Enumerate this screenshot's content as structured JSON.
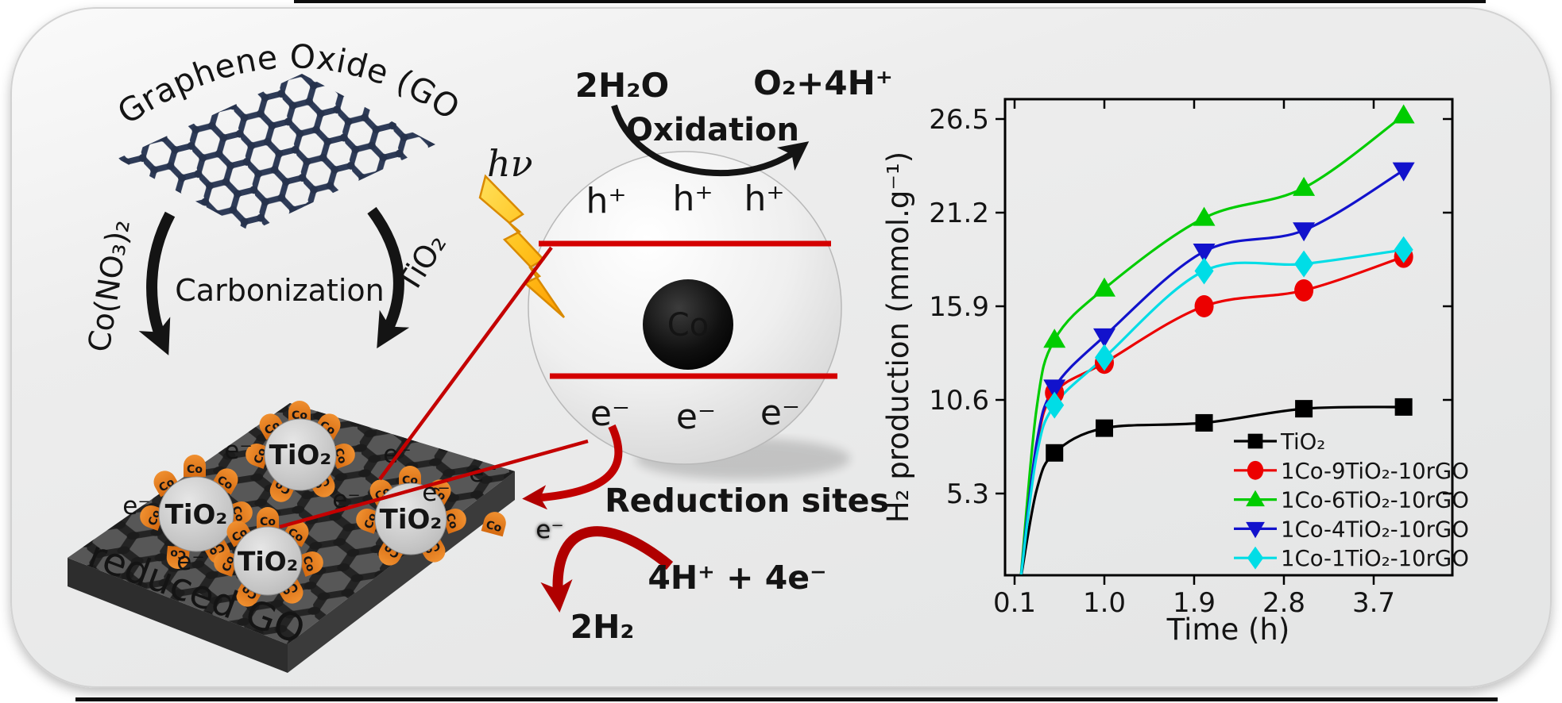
{
  "figure": {
    "labels": {
      "graphene_oxide": "Graphene Oxide (GO)",
      "co_nitrate": "Co(NO₃)₂",
      "carbonization": "Carbonization",
      "tio2_reagent": "TiO₂",
      "light": "hν",
      "water": "2H₂O",
      "oxidation": "Oxidation",
      "oxygen_product": "O₂+4H⁺",
      "hole": "h⁺",
      "electron": "e⁻",
      "cobalt": "Co",
      "reduction_sites": "Reduction sites",
      "proton_feed": "4H⁺ + 4e⁻",
      "hydrogen_product": "2H₂",
      "reduced_go": "reduced GO",
      "tio2_particle": "TiO₂"
    },
    "colors": {
      "card_bg": "#ebecec",
      "lattice_navy": "#2e3b57",
      "band_red": "#d40000",
      "dark_red": "#b00000",
      "reduction_red": "#c40000",
      "bolt_yellow": "#ffd34d",
      "bolt_orange": "#ff9d00",
      "cobalt_orange": "#e8821f",
      "slab_gray": "#575757",
      "tio2_gray": "#c9c9c9"
    }
  },
  "chart_data": {
    "type": "line",
    "title": "",
    "xlabel": "Time (h)",
    "ylabel": "H₂ production (mmol.g⁻¹)",
    "x": [
      0.5,
      1.0,
      2.0,
      3.0,
      4.0
    ],
    "xticks": [
      0.1,
      1.0,
      1.9,
      2.8,
      3.7
    ],
    "yticks": [
      5.3,
      10.6,
      15.9,
      21.2,
      26.5
    ],
    "xlim": [
      0.1,
      4.55
    ],
    "ylim": [
      0.7,
      27.6
    ],
    "grid": false,
    "legend_position": "inside-bottom-right",
    "series": [
      {
        "name": "TiO₂",
        "marker": "square",
        "color": "#000000",
        "values": [
          7.6,
          9.0,
          9.3,
          10.1,
          10.2
        ]
      },
      {
        "name": "1Co-9TiO₂-10rGO",
        "marker": "circle",
        "color": "#ec0000",
        "values": [
          11.0,
          12.7,
          15.9,
          16.8,
          18.7
        ]
      },
      {
        "name": "1Co-6TiO₂-10rGO",
        "marker": "triangle-up",
        "color": "#00cc00",
        "values": [
          14.0,
          16.9,
          20.9,
          22.6,
          26.7
        ]
      },
      {
        "name": "1Co-4TiO₂-10rGO",
        "marker": "triangle-down",
        "color": "#1212cc",
        "values": [
          11.3,
          14.2,
          19.0,
          20.2,
          23.6
        ]
      },
      {
        "name": "1Co-1TiO₂-10rGO",
        "marker": "diamond",
        "color": "#00dde6",
        "values": [
          10.3,
          13.0,
          17.9,
          18.3,
          19.1
        ]
      }
    ]
  }
}
